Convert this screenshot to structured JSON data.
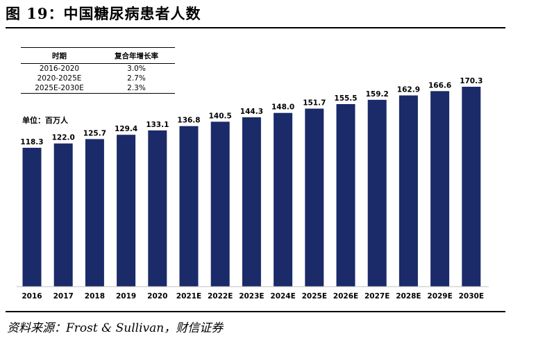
{
  "title": "图 19：中国糖尿病患者人数",
  "source": "资料来源：Frost & Sullivan，财信证券",
  "table": {
    "headers": [
      "时期",
      "复合年增长率"
    ],
    "rows": [
      [
        "2016-2020",
        "3.0%"
      ],
      [
        "2020-2025E",
        "2.7%"
      ],
      [
        "2025E-2030E",
        "2.3%"
      ]
    ]
  },
  "unit_label": "单位：百万人",
  "colors": {
    "bar": "#1b2a68",
    "axis": "#bfbfbf"
  },
  "chart_data": {
    "type": "bar",
    "categories": [
      "2016",
      "2017",
      "2018",
      "2019",
      "2020",
      "2021E",
      "2022E",
      "2023E",
      "2024E",
      "2025E",
      "2026E",
      "2027E",
      "2028E",
      "2029E",
      "2030E"
    ],
    "values": [
      118.3,
      122.0,
      125.7,
      129.4,
      133.1,
      136.8,
      140.5,
      144.3,
      148.0,
      151.7,
      155.5,
      159.2,
      162.9,
      166.6,
      170.3
    ],
    "value_labels": [
      "118.3",
      "122.0",
      "125.7",
      "129.4",
      "133.1",
      "136.8",
      "140.5",
      "144.3",
      "148.0",
      "151.7",
      "155.5",
      "159.2",
      "162.9",
      "166.6",
      "170.3"
    ],
    "ylim": [
      0,
      170.3
    ],
    "grid": false,
    "legend": "none"
  }
}
